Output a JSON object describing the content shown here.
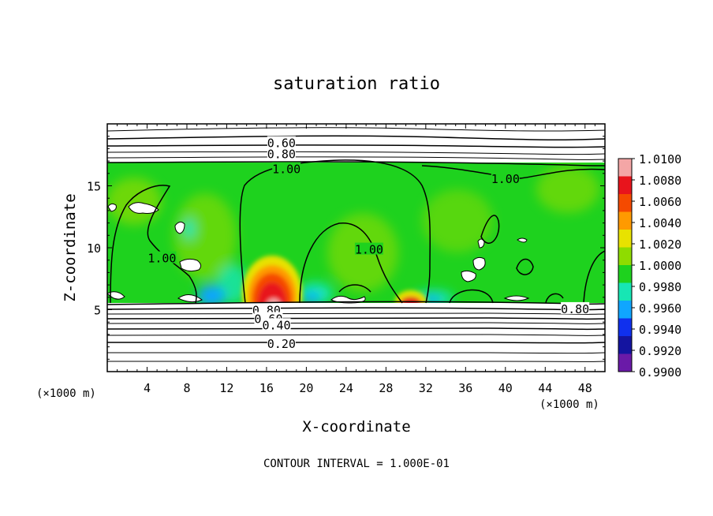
{
  "chart_data": {
    "type": "heatmap",
    "title": "saturation ratio",
    "xlabel": "X-coordinate",
    "ylabel": "Z-coordinate",
    "x_unit": "(×1000 m)",
    "y_unit": "(×1000 m)",
    "xlim": [
      0,
      50
    ],
    "ylim": [
      0,
      20
    ],
    "x_ticks": [
      4,
      8,
      12,
      16,
      20,
      24,
      28,
      32,
      36,
      40,
      44,
      48
    ],
    "y_ticks": [
      5,
      10,
      15
    ],
    "footnote": "CONTOUR INTERVAL = 1.000E-01",
    "colorbar": {
      "levels": [
        "1.0100",
        "1.0080",
        "1.0060",
        "1.0040",
        "1.0020",
        "1.0000",
        "0.9980",
        "0.9960",
        "0.9940",
        "0.9920",
        "0.9900"
      ],
      "colors": [
        "#f4a6a6",
        "#e8141c",
        "#f54a00",
        "#ff9a00",
        "#e8e200",
        "#8fdc00",
        "#1ed21e",
        "#17e6b4",
        "#10a6ff",
        "#1030ee",
        "#1414a0",
        "#6a1aa8"
      ]
    },
    "contour_labels": [
      {
        "text": "0.60",
        "x": 17.5,
        "z": 18.5
      },
      {
        "text": "0.80",
        "x": 17.5,
        "z": 17.6
      },
      {
        "text": "1.00",
        "x": 18.0,
        "z": 16.4
      },
      {
        "text": "1.00",
        "x": 40.0,
        "z": 15.6
      },
      {
        "text": "1.00",
        "x": 5.5,
        "z": 9.2
      },
      {
        "text": "1.00",
        "x": 26.3,
        "z": 9.9
      },
      {
        "text": "0.80",
        "x": 16.0,
        "z": 5.0
      },
      {
        "text": "0.60",
        "x": 16.2,
        "z": 4.3
      },
      {
        "text": "0.40",
        "x": 17.0,
        "z": 3.8
      },
      {
        "text": "0.20",
        "x": 17.5,
        "z": 2.3
      },
      {
        "text": "0.80",
        "x": 47.0,
        "z": 5.1
      }
    ],
    "contour_levels_below_cloud": [
      0.1,
      0.2,
      0.3,
      0.4,
      0.5,
      0.6,
      0.7,
      0.8,
      0.9
    ],
    "contour_levels_above_cloud": [
      0.5,
      0.6,
      0.7,
      0.8,
      0.9
    ],
    "cloud_layer_z": [
      5.5,
      16.8
    ],
    "features": [
      {
        "kind": "updraft maximum",
        "x": 17.0,
        "z_top": 8.5,
        "peak": "1.0100"
      },
      {
        "kind": "updraft maximum",
        "x": 30.4,
        "z_top": 6.6,
        "peak": "1.0060"
      }
    ],
    "grid": false
  }
}
